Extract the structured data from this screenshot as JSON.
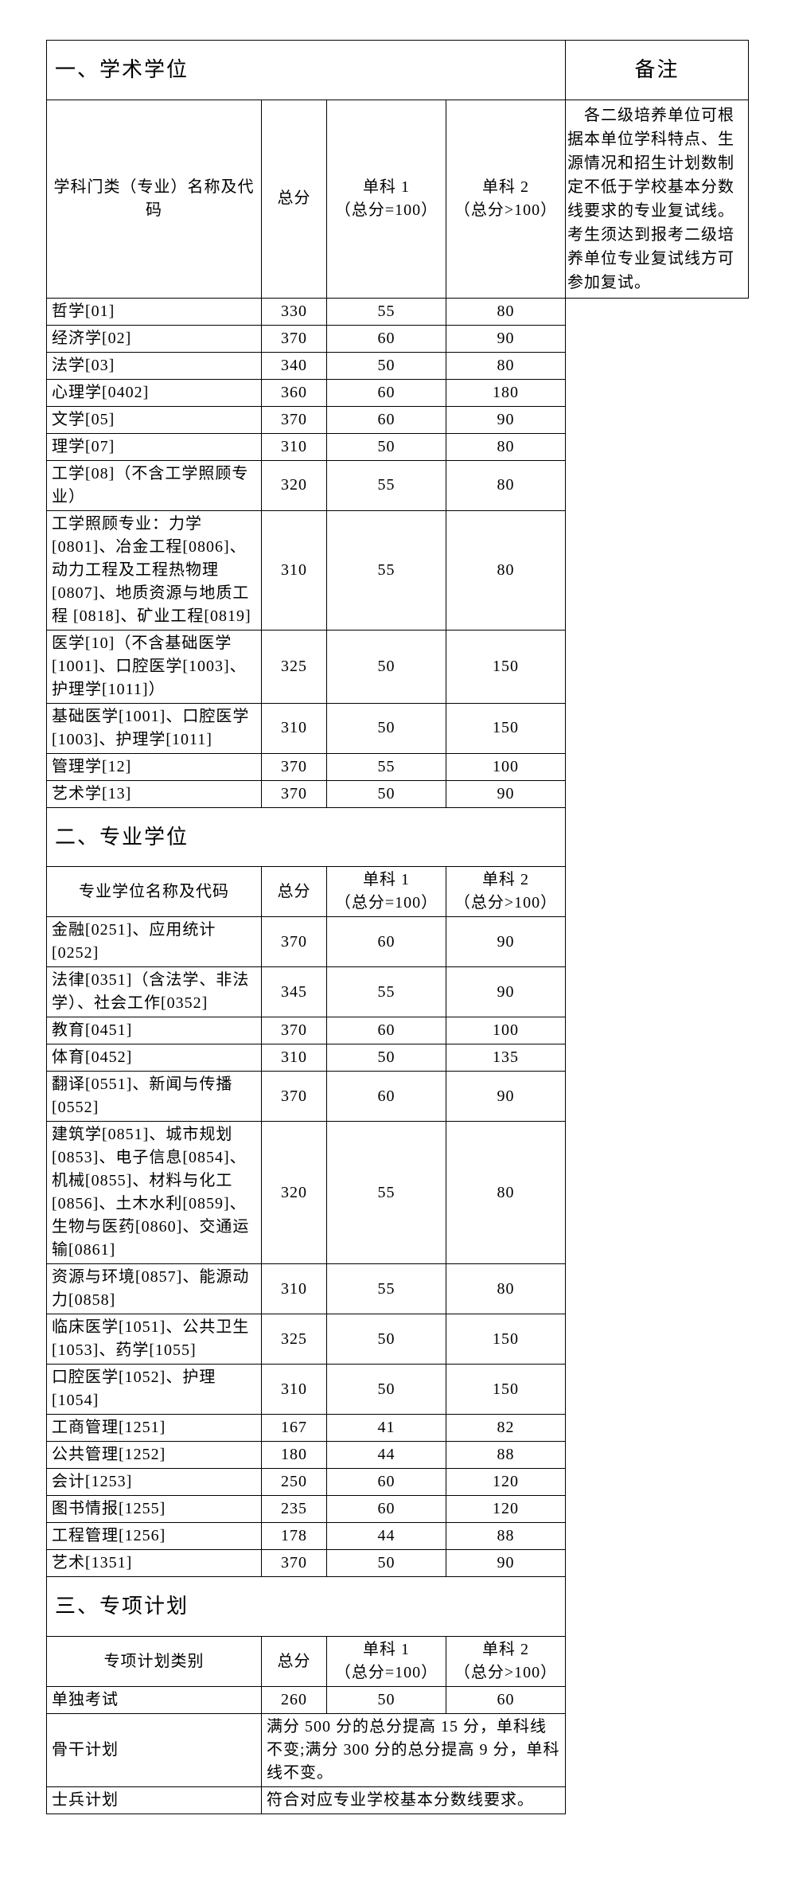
{
  "section1": {
    "title": "一、学术学位",
    "remark_title": "备注",
    "header": [
      "学科门类（专业）名称及代码",
      "总分",
      "单科 1\n（总分=100）",
      "单科 2\n（总分>100）"
    ],
    "rows": [
      {
        "name": "哲学[01]",
        "total": "330",
        "s1": "55",
        "s2": "80"
      },
      {
        "name": "经济学[02]",
        "total": "370",
        "s1": "60",
        "s2": "90"
      },
      {
        "name": "法学[03]",
        "total": "340",
        "s1": "50",
        "s2": "80"
      },
      {
        "name": "心理学[0402]",
        "total": "360",
        "s1": "60",
        "s2": "180"
      },
      {
        "name": "文学[05]",
        "total": "370",
        "s1": "60",
        "s2": "90"
      },
      {
        "name": "理学[07]",
        "total": "310",
        "s1": "50",
        "s2": "80"
      },
      {
        "name": "工学[08]（不含工学照顾专业）",
        "total": "320",
        "s1": "55",
        "s2": "80"
      },
      {
        "name": "工学照顾专业：力学[0801]、冶金工程[0806]、动力工程及工程热物理[0807]、地质资源与地质工程 [0818]、矿业工程[0819]",
        "total": "310",
        "s1": "55",
        "s2": "80"
      },
      {
        "name": "医学[10]（不含基础医学[1001]、口腔医学[1003]、护理学[1011]）",
        "total": "325",
        "s1": "50",
        "s2": "150"
      },
      {
        "name": "基础医学[1001]、口腔医学[1003]、护理学[1011]",
        "total": "310",
        "s1": "50",
        "s2": "150"
      },
      {
        "name": "管理学[12]",
        "total": "370",
        "s1": "55",
        "s2": "100"
      },
      {
        "name": "艺术学[13]",
        "total": "370",
        "s1": "50",
        "s2": "90"
      }
    ],
    "remark_body": "　各二级培养单位可根据本单位学科特点、生源情况和招生计划数制定不低于学校基本分数线要求的专业复试线。考生须达到报考二级培养单位专业复试线方可参加复试。"
  },
  "section2": {
    "title": "二、专业学位",
    "header": [
      "专业学位名称及代码",
      "总分",
      "单科 1\n（总分=100）",
      "单科 2\n（总分>100）"
    ],
    "rows": [
      {
        "name": "金融[0251]、应用统计[0252]",
        "total": "370",
        "s1": "60",
        "s2": "90"
      },
      {
        "name": "法律[0351]（含法学、非法学）、社会工作[0352]",
        "total": "345",
        "s1": "55",
        "s2": "90"
      },
      {
        "name": "教育[0451]",
        "total": "370",
        "s1": "60",
        "s2": "100"
      },
      {
        "name": "体育[0452]",
        "total": "310",
        "s1": "50",
        "s2": "135"
      },
      {
        "name": "翻译[0551]、新闻与传播[0552]",
        "total": "370",
        "s1": "60",
        "s2": "90"
      },
      {
        "name": "建筑学[0851]、城市规划[0853]、电子信息[0854]、机械[0855]、材料与化工[0856]、土木水利[0859]、生物与医药[0860]、交通运输[0861]",
        "total": "320",
        "s1": "55",
        "s2": "80"
      },
      {
        "name": "资源与环境[0857]、能源动力[0858]",
        "total": "310",
        "s1": "55",
        "s2": "80"
      },
      {
        "name": "临床医学[1051]、公共卫生[1053]、药学[1055]",
        "total": "325",
        "s1": "50",
        "s2": "150"
      },
      {
        "name": "口腔医学[1052]、护理[1054]",
        "total": "310",
        "s1": "50",
        "s2": "150"
      },
      {
        "name": "工商管理[1251]",
        "total": "167",
        "s1": "41",
        "s2": "82"
      },
      {
        "name": "公共管理[1252]",
        "total": "180",
        "s1": "44",
        "s2": "88"
      },
      {
        "name": "会计[1253]",
        "total": "250",
        "s1": "60",
        "s2": "120"
      },
      {
        "name": "图书情报[1255]",
        "total": "235",
        "s1": "60",
        "s2": "120"
      },
      {
        "name": "工程管理[1256]",
        "total": "178",
        "s1": "44",
        "s2": "88"
      },
      {
        "name": "艺术[1351]",
        "total": "370",
        "s1": "50",
        "s2": "90"
      }
    ]
  },
  "section3": {
    "title": "三、专项计划",
    "header": [
      "专项计划类别",
      "总分",
      "单科 1\n（总分=100）",
      "单科 2\n（总分>100）"
    ],
    "rows": [
      {
        "name": "单独考试",
        "total": "260",
        "s1": "50",
        "s2": "60"
      }
    ],
    "merged_rows": [
      {
        "name": "骨干计划",
        "text": "满分 500 分的总分提高 15 分，单科线不变;满分 300 分的总分提高 9 分，单科线不变。"
      },
      {
        "name": "士兵计划",
        "text": "符合对应专业学校基本分数线要求。"
      }
    ]
  },
  "col_widths": {
    "c1": 270,
    "c2": 82,
    "c3": 150,
    "c4": 150,
    "c5": 230
  }
}
